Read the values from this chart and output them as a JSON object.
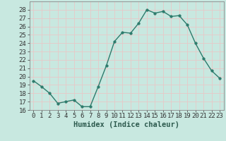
{
  "x": [
    0,
    1,
    2,
    3,
    4,
    5,
    6,
    7,
    8,
    9,
    10,
    11,
    12,
    13,
    14,
    15,
    16,
    17,
    18,
    19,
    20,
    21,
    22,
    23
  ],
  "y": [
    19.5,
    18.8,
    18.0,
    16.8,
    17.0,
    17.2,
    16.4,
    16.4,
    18.8,
    21.3,
    24.2,
    25.3,
    25.2,
    26.4,
    28.0,
    27.6,
    27.8,
    27.2,
    27.3,
    26.2,
    24.0,
    22.2,
    20.7,
    19.8
  ],
  "line_color": "#2d7b6c",
  "marker_color": "#2d7b6c",
  "bg_color": "#c8e8e0",
  "grid_color": "#e8c8c8",
  "xlabel": "Humidex (Indice chaleur)",
  "ylim": [
    16,
    29
  ],
  "xlim": [
    -0.5,
    23.5
  ],
  "yticks": [
    16,
    17,
    18,
    19,
    20,
    21,
    22,
    23,
    24,
    25,
    26,
    27,
    28
  ],
  "xticks": [
    0,
    1,
    2,
    3,
    4,
    5,
    6,
    7,
    8,
    9,
    10,
    11,
    12,
    13,
    14,
    15,
    16,
    17,
    18,
    19,
    20,
    21,
    22,
    23
  ],
  "tick_fontsize": 6.5,
  "label_fontsize": 7.5,
  "linewidth": 1.0,
  "markersize": 2.5
}
